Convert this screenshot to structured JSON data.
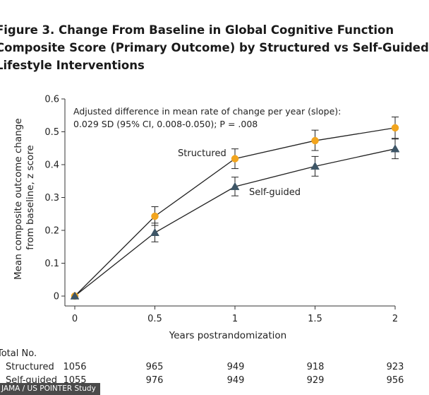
{
  "figure": {
    "title_lines": [
      "Figure 3. Change From Baseline in Global Cognitive Function",
      "Composite Score (Primary Outcome) by Structured vs Self-Guided",
      "Lifestyle Interventions"
    ],
    "credit": "JAMA / US POINTER Study"
  },
  "chart_data": {
    "type": "line",
    "title": "Figure 3. Change From Baseline in Global Cognitive Function Composite Score (Primary Outcome) by Structured vs Self-Guided Lifestyle Interventions",
    "xlabel": "Years postrandomization",
    "ylabel_lines": [
      "Mean composite outcome change",
      "from baseline, z score"
    ],
    "x": [
      0,
      0.5,
      1,
      1.5,
      2
    ],
    "x_tick_labels": [
      "0",
      "0.5",
      "1",
      "1.5",
      "2"
    ],
    "xlim": [
      0,
      2
    ],
    "ylim": [
      0,
      0.6
    ],
    "y_ticks": [
      0,
      0.1,
      0.2,
      0.3,
      0.4,
      0.5,
      0.6
    ],
    "y_tick_labels": [
      "0",
      "0.1",
      "0.2",
      "0.3",
      "0.4",
      "0.5",
      "0.6"
    ],
    "grid": false,
    "annotation_lines": [
      "Adjusted difference in mean rate of change per year (slope):",
      "0.029 SD (95% CI, 0.008-0.050); P = .008"
    ],
    "series": [
      {
        "name": "Structured",
        "marker": "circle",
        "color": "#F2A51E",
        "line_color": "#222222",
        "values": [
          0,
          0.243,
          0.418,
          0.473,
          0.512
        ],
        "ci_low": [
          0,
          0.215,
          0.388,
          0.443,
          0.48
        ],
        "ci_high": [
          0,
          0.272,
          0.448,
          0.505,
          0.545
        ]
      },
      {
        "name": "Self-guided",
        "marker": "triangle",
        "color": "#3D5566",
        "line_color": "#222222",
        "values": [
          0,
          0.193,
          0.333,
          0.395,
          0.448
        ],
        "ci_low": [
          0,
          0.165,
          0.305,
          0.365,
          0.418
        ],
        "ci_high": [
          0,
          0.222,
          0.362,
          0.425,
          0.478
        ]
      }
    ],
    "table": {
      "header": "Total No.",
      "rows": [
        {
          "label": "Structured",
          "values": [
            "1056",
            "965",
            "949",
            "918",
            "923"
          ]
        },
        {
          "label": "Self-guided",
          "values": [
            "1055",
            "976",
            "949",
            "929",
            "956"
          ]
        }
      ]
    }
  }
}
